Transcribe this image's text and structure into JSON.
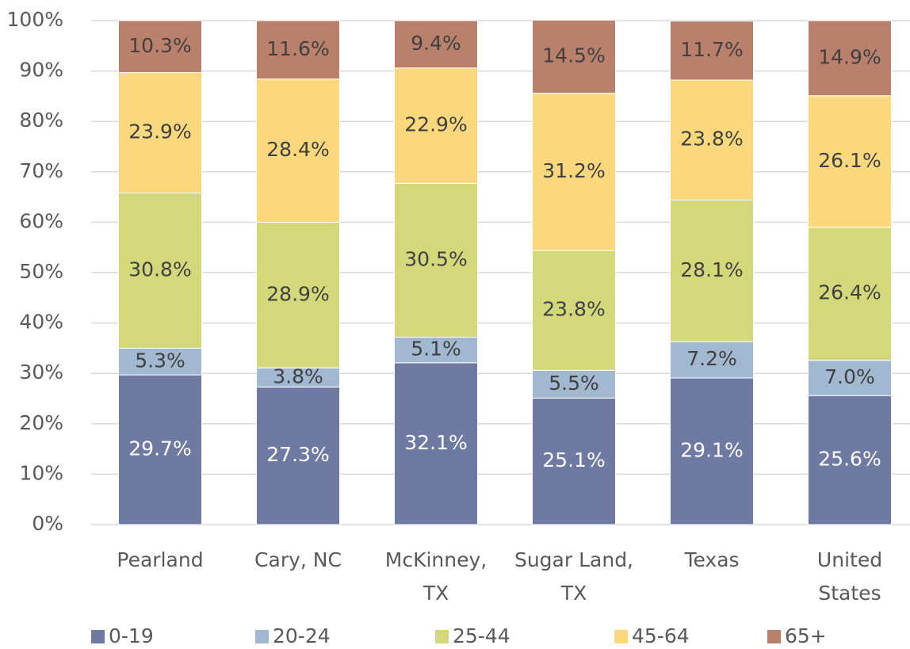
{
  "chart_data": {
    "type": "stacked_bar",
    "categories": [
      "Pearland",
      "Cary, NC",
      "McKinney, TX",
      "Sugar Land, TX",
      "Texas",
      "United States"
    ],
    "series": [
      {
        "name": "0-19",
        "color": "#6f7aa3",
        "values": [
          29.7,
          27.3,
          32.1,
          25.1,
          29.1,
          25.6
        ],
        "value_labels": [
          "29.7%",
          "27.3%",
          "32.1%",
          "25.1%",
          "29.1%",
          "25.6%"
        ]
      },
      {
        "name": "20-24",
        "color": "#a2b8d0",
        "values": [
          5.3,
          3.8,
          5.1,
          5.5,
          7.2,
          7.0
        ],
        "value_labels": [
          "5.3%",
          "3.8%",
          "5.1%",
          "5.5%",
          "7.2%",
          "7.0%"
        ]
      },
      {
        "name": "25-44",
        "color": "#d3d97b",
        "values": [
          30.8,
          28.9,
          30.5,
          23.8,
          28.1,
          26.4
        ],
        "value_labels": [
          "30.8%",
          "28.9%",
          "30.5%",
          "23.8%",
          "28.1%",
          "26.4%"
        ]
      },
      {
        "name": "45-64",
        "color": "#fbd87d",
        "values": [
          23.9,
          28.4,
          22.9,
          31.2,
          23.8,
          26.1
        ],
        "value_labels": [
          "23.9%",
          "28.4%",
          "22.9%",
          "31.2%",
          "23.8%",
          "26.1%"
        ]
      },
      {
        "name": "65+",
        "color": "#b9816c",
        "values": [
          10.3,
          11.6,
          9.4,
          14.5,
          11.7,
          14.9
        ],
        "value_labels": [
          "10.3%",
          "11.6%",
          "9.4%",
          "14.5%",
          "11.7%",
          "14.9%"
        ]
      }
    ],
    "ylim": [
      0,
      100
    ],
    "yticks": [
      {
        "value": 0,
        "label": "0%"
      },
      {
        "value": 10,
        "label": "10%"
      },
      {
        "value": 20,
        "label": "20%"
      },
      {
        "value": 30,
        "label": "30%"
      },
      {
        "value": 40,
        "label": "40%"
      },
      {
        "value": 50,
        "label": "50%"
      },
      {
        "value": 60,
        "label": "60%"
      },
      {
        "value": 70,
        "label": "70%"
      },
      {
        "value": 80,
        "label": "80%"
      },
      {
        "value": 90,
        "label": "90%"
      },
      {
        "value": 100,
        "label": "100%"
      }
    ],
    "grid": true,
    "legend": "bottom"
  }
}
